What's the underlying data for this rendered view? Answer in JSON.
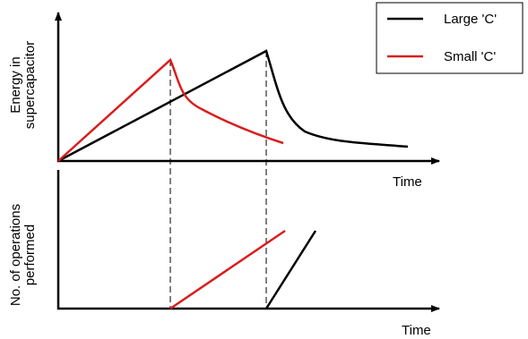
{
  "legend": {
    "items": [
      {
        "label": "Large 'C'"
      },
      {
        "label": "Small 'C'"
      }
    ]
  },
  "top_plot": {
    "y_label": [
      "Energy in",
      "supercapacitor"
    ],
    "x_label": "Time"
  },
  "bottom_plot": {
    "y_label": [
      "No. of operations",
      "performed"
    ],
    "x_label": "Time"
  }
}
